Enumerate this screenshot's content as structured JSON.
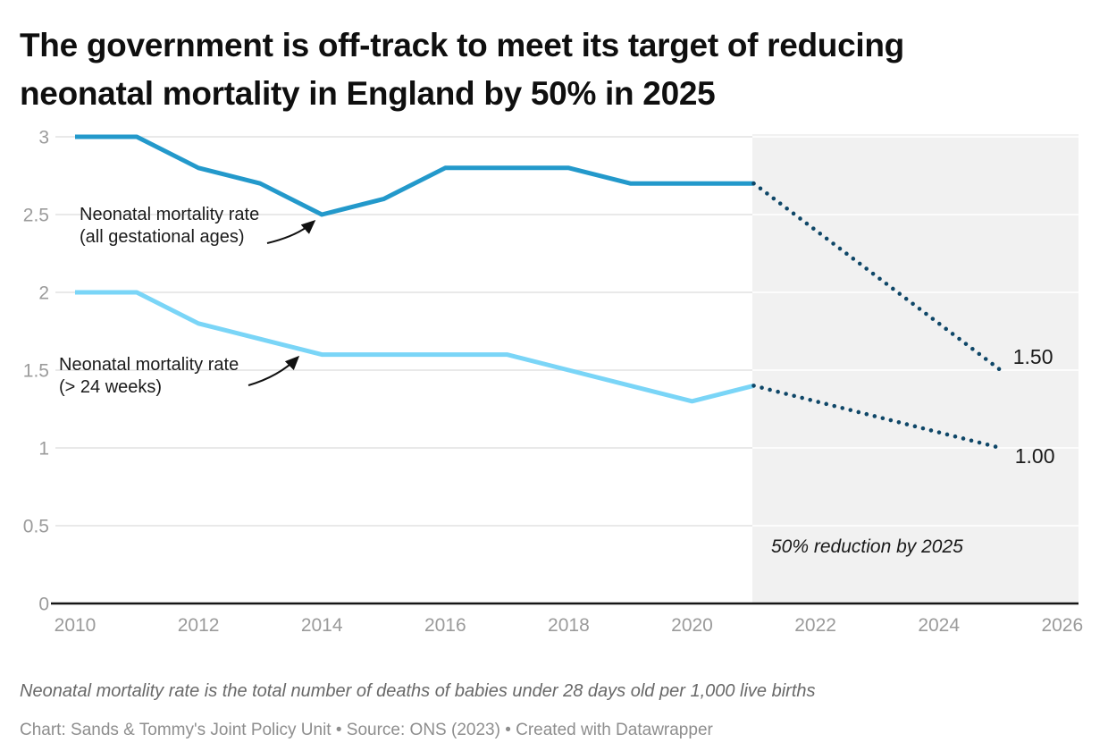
{
  "title": {
    "line1": "The government is off-track to meet its target of reducing",
    "line2": "neonatal mortality in England by 50% in 2025"
  },
  "annotations": {
    "series1_label_line1": "Neonatal mortality rate",
    "series1_label_line2": "(all gestational ages)",
    "series2_label_line1": "Neonatal mortality rate",
    "series2_label_line2": "(> 24 weeks)",
    "target_note": "50% reduction by 2025"
  },
  "footer": {
    "note": "Neonatal mortality rate is the total number of deaths of babies under 28 days old per 1,000 live births",
    "attribution": "Chart: Sands & Tommy's Joint Policy Unit • Source: ONS (2023) • Created with Datawrapper"
  },
  "colors": {
    "series_dark": "#2399cb",
    "series_light": "#7ad5f7",
    "projection": "#0f4768",
    "shade": "#f1f1f1",
    "grid": "#e2e2e2",
    "grid_on_shade": "#ffffff",
    "axis_text": "#9b9b9b",
    "baseline": "#161616"
  },
  "chart_data": {
    "type": "line",
    "title": "The government is off-track to meet its target of reducing neonatal mortality in England by 50% in 2025",
    "xlabel": "",
    "ylabel": "",
    "x": [
      2010,
      2011,
      2012,
      2013,
      2014,
      2015,
      2016,
      2017,
      2018,
      2019,
      2020,
      2021
    ],
    "series": [
      {
        "name": "Neonatal mortality rate (all gestational ages)",
        "color": "#2399cb",
        "values": [
          3.0,
          3.0,
          2.8,
          2.7,
          2.5,
          2.6,
          2.8,
          2.8,
          2.8,
          2.7,
          2.7,
          2.7
        ],
        "projection": {
          "x": [
            2021,
            2025
          ],
          "values": [
            2.7,
            1.5
          ],
          "end_label": "1.50"
        }
      },
      {
        "name": "Neonatal mortality rate (> 24 weeks)",
        "color": "#7ad5f7",
        "values": [
          2.0,
          2.0,
          1.8,
          1.7,
          1.6,
          1.6,
          1.6,
          1.6,
          1.5,
          1.4,
          1.3,
          1.4
        ],
        "projection": {
          "x": [
            2021,
            2025
          ],
          "values": [
            1.4,
            1.0
          ],
          "end_label": "1.00"
        }
      }
    ],
    "projection_style": "dotted",
    "target_region": {
      "x_start": 2021,
      "x_end": 2026.3,
      "label": "50% reduction by 2025"
    },
    "x_ticks": [
      2010,
      2012,
      2014,
      2016,
      2018,
      2020,
      2022,
      2024,
      2026
    ],
    "y_ticks": [
      0,
      0.5,
      1,
      1.5,
      2,
      2.5,
      3
    ],
    "xlim": [
      2010,
      2026.3
    ],
    "ylim": [
      0,
      3
    ],
    "grid": "horizontal"
  }
}
